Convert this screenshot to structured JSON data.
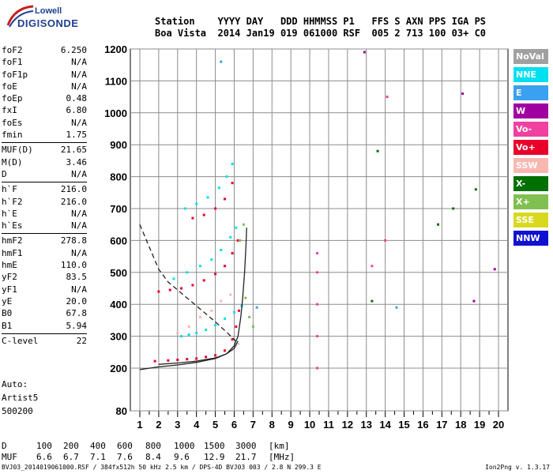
{
  "logo": {
    "top": "Lowell",
    "bottom": "DIGISONDE"
  },
  "header": {
    "line1": "Station    YYYY DAY   DDD HHMMSS P1   FFS S AXN PPS IGA PS",
    "line2": "Boa Vista  2014 Jan19 019 061000 RSF  005 2 713 100 03+ C0"
  },
  "params_groups": [
    [
      {
        "label": "foF2",
        "value": "6.250"
      },
      {
        "label": "foF1",
        "value": "N/A"
      },
      {
        "label": "foF1p",
        "value": "N/A"
      },
      {
        "label": "foE",
        "value": "N/A"
      },
      {
        "label": "foEp",
        "value": "0.48"
      },
      {
        "label": "fxI",
        "value": "6.80"
      },
      {
        "label": "foEs",
        "value": "N/A"
      },
      {
        "label": "fmin",
        "value": "1.75"
      }
    ],
    [
      {
        "label": "MUF(D)",
        "value": "21.65"
      },
      {
        "label": "M(D)",
        "value": "3.46"
      },
      {
        "label": "D",
        "value": "N/A"
      }
    ],
    [
      {
        "label": "h`F",
        "value": "216.0"
      },
      {
        "label": "h`F2",
        "value": "216.0"
      },
      {
        "label": "h`E",
        "value": "N/A"
      },
      {
        "label": "h`Es",
        "value": "N/A"
      }
    ],
    [
      {
        "label": "hmF2",
        "value": "278.8"
      },
      {
        "label": "hmF1",
        "value": "N/A"
      },
      {
        "label": "hmE",
        "value": "110.0"
      },
      {
        "label": "yF2",
        "value": "83.5"
      },
      {
        "label": "yF1",
        "value": "N/A"
      },
      {
        "label": "yE",
        "value": "20.0"
      },
      {
        "label": "B0",
        "value": "67.8"
      },
      {
        "label": "B1",
        "value": "5.94"
      }
    ],
    [
      {
        "label": "C-level",
        "value": "22"
      }
    ]
  ],
  "info": {
    "line1": "Auto:",
    "line2": "Artist5",
    "line3": "500200"
  },
  "legend": [
    {
      "name": "NoVal",
      "color": "#a0a0a0"
    },
    {
      "name": "NNE",
      "color": "#00e0f0"
    },
    {
      "name": "E",
      "color": "#3aa0f0"
    },
    {
      "name": "W",
      "color": "#a000a0"
    },
    {
      "name": "Vo-",
      "color": "#f040a0"
    },
    {
      "name": "Vo+",
      "color": "#e8002a"
    },
    {
      "name": "SSW",
      "color": "#f8b8b0"
    },
    {
      "name": "X-",
      "color": "#007000"
    },
    {
      "name": "X+",
      "color": "#80c050"
    },
    {
      "name": "SSE",
      "color": "#d8d820"
    },
    {
      "name": "NNW",
      "color": "#1010d0"
    }
  ],
  "dtable": {
    "d_label": "D",
    "d_values": [
      "100",
      "200",
      "400",
      "600",
      "800",
      "1000",
      "1500",
      "3000"
    ],
    "d_unit": "[km]",
    "muf_label": "MUF",
    "muf_values": [
      "6.6",
      "6.7",
      "7.1",
      "7.6",
      "8.4",
      "9.6",
      "12.9",
      "21.7"
    ],
    "muf_unit": "[MHz]"
  },
  "footer": "BVJ03_2014019061000.RSF / 384fx512h 50 kHz 2.5 km / DPS-4D BVJ03 003 / 2.8 N 299.3 E",
  "footer_right": "Ion2Png v. 1.3.17",
  "chart_data": {
    "type": "scatter",
    "x_ticks": [
      "1",
      "2",
      "3",
      "4",
      "5",
      "6",
      "7",
      "8",
      "9",
      "10",
      "11",
      "12",
      "13",
      "14",
      "15",
      "16",
      "17",
      "18",
      "19",
      "20"
    ],
    "y_ticks": [
      "80",
      "200",
      "300",
      "400",
      "500",
      "600",
      "700",
      "800",
      "900",
      "1000",
      "1100",
      "1200"
    ],
    "xlim": [
      1,
      20
    ],
    "ylim": [
      80,
      1200
    ],
    "xlabel": "",
    "ylabel": "",
    "grid": true,
    "series": [
      {
        "color": "#e8002a",
        "points": [
          [
            1.8,
            222
          ],
          [
            2.5,
            224
          ],
          [
            3,
            226
          ],
          [
            3.5,
            228
          ],
          [
            4,
            230
          ],
          [
            4.5,
            235
          ],
          [
            5,
            240
          ],
          [
            5.5,
            255
          ],
          [
            5.9,
            290
          ],
          [
            6.1,
            330
          ],
          [
            6.25,
            380
          ]
        ]
      },
      {
        "color": "#00e0f0",
        "points": [
          [
            3.2,
            300
          ],
          [
            3.6,
            305
          ],
          [
            4,
            310
          ],
          [
            4.5,
            320
          ],
          [
            5,
            335
          ],
          [
            5.5,
            355
          ],
          [
            6,
            375
          ],
          [
            6.4,
            395
          ]
        ]
      },
      {
        "color": "#e8002a",
        "points": [
          [
            2,
            440
          ],
          [
            2.6,
            445
          ],
          [
            3.2,
            450
          ],
          [
            3.8,
            460
          ],
          [
            4.4,
            475
          ],
          [
            5,
            495
          ],
          [
            5.5,
            520
          ],
          [
            5.9,
            560
          ],
          [
            6.2,
            600
          ]
        ]
      },
      {
        "color": "#00e0f0",
        "points": [
          [
            2.8,
            480
          ],
          [
            3.5,
            500
          ],
          [
            4.2,
            520
          ],
          [
            4.8,
            540
          ],
          [
            5.3,
            570
          ],
          [
            5.8,
            610
          ],
          [
            6.1,
            640
          ]
        ]
      },
      {
        "color": "#00e0f0",
        "points": [
          [
            3.4,
            700
          ],
          [
            4,
            715
          ],
          [
            4.6,
            735
          ],
          [
            5.2,
            765
          ],
          [
            5.6,
            800
          ],
          [
            5.9,
            840
          ]
        ]
      },
      {
        "color": "#e8002a",
        "points": [
          [
            3.8,
            670
          ],
          [
            4.4,
            680
          ],
          [
            5,
            700
          ],
          [
            5.5,
            730
          ],
          [
            5.9,
            780
          ]
        ]
      },
      {
        "color": "#f8b8b0",
        "points": [
          [
            3,
            310
          ],
          [
            3.6,
            330
          ],
          [
            4.2,
            360
          ],
          [
            4.8,
            380
          ],
          [
            5.3,
            410
          ],
          [
            5.8,
            430
          ]
        ]
      },
      {
        "color": "#80c050",
        "points": [
          [
            6.3,
            600
          ],
          [
            6.5,
            650
          ],
          [
            6.6,
            420
          ],
          [
            6.8,
            360
          ],
          [
            7,
            330
          ]
        ]
      },
      {
        "color": "#f040a0",
        "points": [
          [
            10.4,
            200
          ],
          [
            10.4,
            300
          ],
          [
            10.4,
            400
          ],
          [
            10.4,
            500
          ],
          [
            10.4,
            560
          ],
          [
            13.3,
            520
          ],
          [
            14,
            600
          ],
          [
            14.1,
            1050
          ]
        ]
      },
      {
        "color": "#007000",
        "points": [
          [
            13.3,
            410
          ],
          [
            13.6,
            880
          ],
          [
            16.8,
            650
          ],
          [
            17.6,
            700
          ],
          [
            18.8,
            760
          ]
        ]
      },
      {
        "color": "#a000a0",
        "points": [
          [
            12.9,
            1190
          ],
          [
            18.7,
            410
          ],
          [
            19.8,
            510
          ],
          [
            18.1,
            1060
          ]
        ]
      },
      {
        "color": "#3aa0f0",
        "points": [
          [
            5.3,
            1160
          ],
          [
            7.2,
            390
          ],
          [
            14.6,
            390
          ]
        ]
      }
    ],
    "fitted_curves": [
      {
        "style": "solid",
        "points": [
          [
            1,
            196
          ],
          [
            2,
            204
          ],
          [
            3,
            210
          ],
          [
            4,
            218
          ],
          [
            5,
            230
          ],
          [
            5.6,
            245
          ],
          [
            6,
            270
          ],
          [
            6.2,
            300
          ],
          [
            6.35,
            360
          ],
          [
            6.45,
            420
          ],
          [
            6.55,
            500
          ],
          [
            6.62,
            580
          ],
          [
            6.66,
            640
          ]
        ]
      },
      {
        "style": "solid",
        "points": [
          [
            2,
            212
          ],
          [
            3,
            216
          ],
          [
            4,
            222
          ],
          [
            5,
            232
          ],
          [
            5.6,
            245
          ],
          [
            6,
            262
          ],
          [
            6.2,
            285
          ]
        ]
      },
      {
        "style": "dashed",
        "points": [
          [
            1,
            650
          ],
          [
            1.5,
            580
          ],
          [
            2,
            510
          ],
          [
            2.5,
            470
          ],
          [
            3,
            445
          ],
          [
            3.5,
            420
          ],
          [
            4,
            395
          ],
          [
            4.5,
            370
          ],
          [
            5,
            345
          ],
          [
            5.5,
            318
          ],
          [
            6,
            290
          ],
          [
            6.25,
            275
          ]
        ]
      }
    ]
  }
}
